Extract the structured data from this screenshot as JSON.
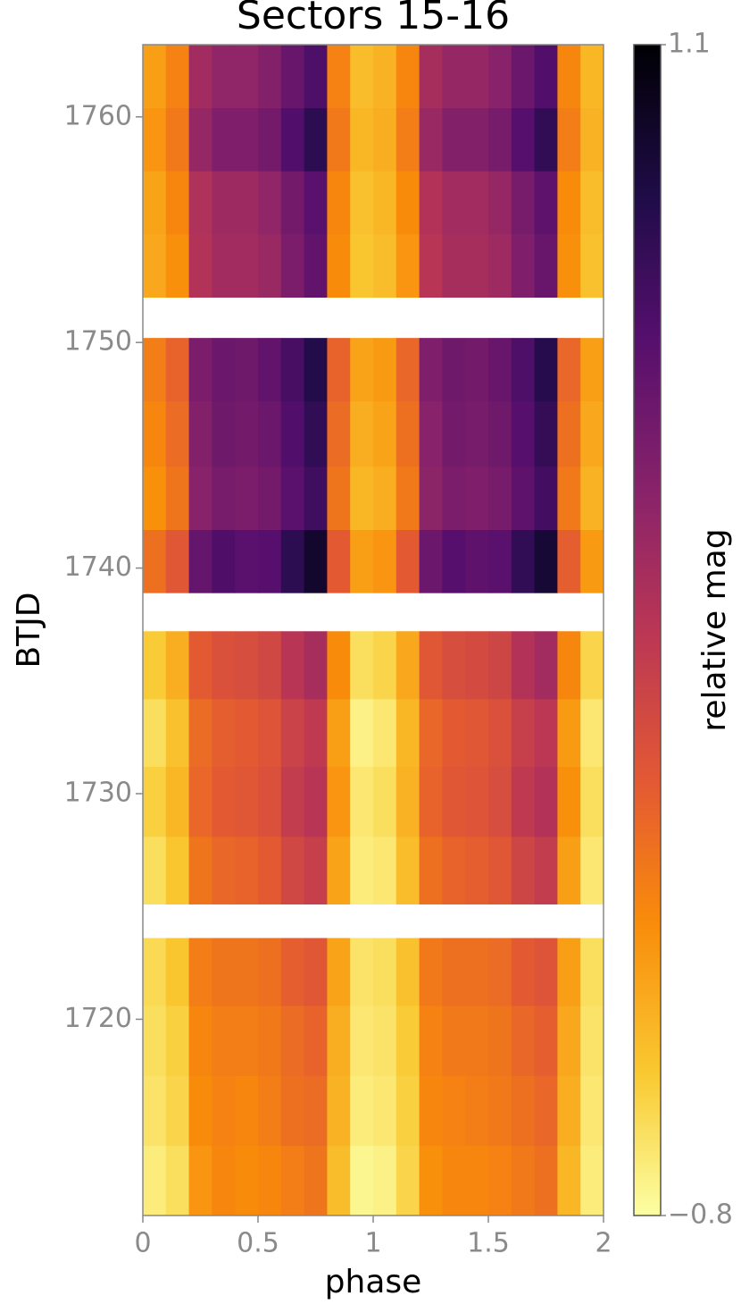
{
  "chart_data": {
    "type": "heatmap",
    "title": "Sectors 15-16",
    "xlabel": "phase",
    "ylabel": "BTJD",
    "colorbar_label": "relative mag",
    "colormap": "inferno",
    "colormap_reversed": true,
    "xlim": [
      0,
      2
    ],
    "xticks": [
      0,
      0.5,
      1,
      1.5,
      2
    ],
    "ylim": [
      1711.3,
      1763.2
    ],
    "yticks": [
      1720,
      1730,
      1740,
      1750,
      1760
    ],
    "zlim": [
      -0.8,
      1.1
    ],
    "zticks": [
      {
        "value": -0.8,
        "label": "−0.8"
      },
      1.1
    ],
    "x_bins": [
      0,
      0.1,
      0.2,
      0.3,
      0.4,
      0.5,
      0.6,
      0.7,
      0.8,
      0.9,
      1,
      1.1,
      1.2,
      1.3,
      1.4,
      1.5,
      1.6,
      1.7,
      1.8,
      1.9,
      2
    ],
    "rows": [
      {
        "y": [
          1711.3,
          1714.4
        ],
        "values": [
          -0.72,
          -0.66,
          -0.36,
          -0.3,
          -0.32,
          -0.3,
          -0.26,
          -0.22,
          -0.52,
          -0.76,
          -0.74,
          -0.62,
          -0.34,
          -0.3,
          -0.3,
          -0.28,
          -0.24,
          -0.2,
          -0.5,
          -0.72
        ]
      },
      {
        "y": [
          1714.4,
          1717.5
        ],
        "values": [
          -0.68,
          -0.62,
          -0.32,
          -0.28,
          -0.3,
          -0.26,
          -0.2,
          -0.18,
          -0.48,
          -0.72,
          -0.7,
          -0.6,
          -0.3,
          -0.28,
          -0.26,
          -0.24,
          -0.2,
          -0.16,
          -0.46,
          -0.7
        ]
      },
      {
        "y": [
          1717.5,
          1720.6
        ],
        "values": [
          -0.66,
          -0.6,
          -0.3,
          -0.26,
          -0.26,
          -0.24,
          -0.18,
          -0.14,
          -0.46,
          -0.7,
          -0.68,
          -0.58,
          -0.28,
          -0.24,
          -0.24,
          -0.22,
          -0.16,
          -0.12,
          -0.44,
          -0.68
        ]
      },
      {
        "y": [
          1720.6,
          1723.6
        ],
        "values": [
          -0.64,
          -0.56,
          -0.26,
          -0.22,
          -0.22,
          -0.2,
          -0.12,
          -0.08,
          -0.42,
          -0.68,
          -0.66,
          -0.54,
          -0.24,
          -0.2,
          -0.2,
          -0.18,
          -0.1,
          -0.06,
          -0.4,
          -0.66
        ]
      },
      {
        "y": [
          1725.1,
          1728.1
        ],
        "values": [
          -0.66,
          -0.56,
          -0.22,
          -0.16,
          -0.14,
          -0.1,
          0.02,
          0.08,
          -0.42,
          -0.72,
          -0.7,
          -0.52,
          -0.2,
          -0.14,
          -0.12,
          -0.08,
          0.04,
          0.1,
          -0.4,
          -0.7
        ]
      },
      {
        "y": [
          1728.1,
          1731.2
        ],
        "values": [
          -0.6,
          -0.5,
          -0.16,
          -0.1,
          -0.08,
          -0.04,
          0.1,
          0.16,
          -0.36,
          -0.7,
          -0.66,
          -0.48,
          -0.14,
          -0.08,
          -0.06,
          -0.02,
          0.12,
          0.18,
          -0.34,
          -0.66
        ]
      },
      {
        "y": [
          1731.2,
          1734.2
        ],
        "values": [
          -0.66,
          -0.54,
          -0.18,
          -0.12,
          -0.1,
          -0.06,
          0.06,
          0.12,
          -0.4,
          -0.74,
          -0.7,
          -0.5,
          -0.16,
          -0.1,
          -0.08,
          -0.04,
          0.08,
          0.14,
          -0.38,
          -0.7
        ]
      },
      {
        "y": [
          1734.2,
          1737.2
        ],
        "values": [
          -0.58,
          -0.46,
          -0.1,
          -0.04,
          -0.02,
          0.02,
          0.16,
          0.24,
          -0.32,
          -0.66,
          -0.62,
          -0.44,
          -0.08,
          -0.02,
          0,
          0.04,
          0.18,
          0.26,
          -0.3,
          -0.62
        ]
      },
      {
        "y": [
          1738.9,
          1741.7
        ],
        "values": [
          -0.2,
          -0.08,
          0.55,
          0.65,
          0.6,
          0.62,
          0.8,
          0.95,
          -0.1,
          -0.4,
          -0.36,
          -0.1,
          0.52,
          0.62,
          0.58,
          0.6,
          0.78,
          0.92,
          -0.12,
          -0.38
        ]
      },
      {
        "y": [
          1741.7,
          1744.5
        ],
        "values": [
          -0.34,
          -0.22,
          0.38,
          0.46,
          0.44,
          0.48,
          0.6,
          0.72,
          -0.22,
          -0.5,
          -0.46,
          -0.24,
          0.36,
          0.44,
          0.42,
          0.46,
          0.58,
          0.7,
          -0.24,
          -0.48
        ]
      },
      {
        "y": [
          1744.5,
          1747.4
        ],
        "values": [
          -0.3,
          -0.18,
          0.4,
          0.5,
          0.48,
          0.52,
          0.64,
          0.78,
          -0.18,
          -0.46,
          -0.42,
          -0.2,
          0.38,
          0.48,
          0.46,
          0.5,
          0.62,
          0.76,
          -0.2,
          -0.44
        ]
      },
      {
        "y": [
          1747.4,
          1750.2
        ],
        "values": [
          -0.26,
          -0.14,
          0.44,
          0.52,
          0.5,
          0.56,
          0.68,
          0.84,
          -0.14,
          -0.42,
          -0.38,
          -0.16,
          0.42,
          0.5,
          0.48,
          0.54,
          0.66,
          0.82,
          -0.16,
          -0.4
        ]
      },
      {
        "y": [
          1752.0,
          1754.8
        ],
        "values": [
          -0.44,
          -0.34,
          0.18,
          0.26,
          0.26,
          0.3,
          0.44,
          0.56,
          -0.32,
          -0.56,
          -0.52,
          -0.36,
          0.16,
          0.24,
          0.24,
          0.28,
          0.42,
          0.54,
          -0.34,
          -0.54
        ]
      },
      {
        "y": [
          1754.8,
          1757.6
        ],
        "values": [
          -0.42,
          -0.3,
          0.2,
          0.28,
          0.28,
          0.34,
          0.48,
          0.6,
          -0.3,
          -0.54,
          -0.5,
          -0.32,
          0.18,
          0.26,
          0.26,
          0.32,
          0.46,
          0.58,
          -0.32,
          -0.52
        ]
      },
      {
        "y": [
          1757.6,
          1760.4
        ],
        "values": [
          -0.36,
          -0.24,
          0.32,
          0.42,
          0.42,
          0.48,
          0.64,
          0.8,
          -0.24,
          -0.5,
          -0.46,
          -0.26,
          0.3,
          0.4,
          0.4,
          0.46,
          0.62,
          0.78,
          -0.26,
          -0.48
        ]
      },
      {
        "y": [
          1760.4,
          1763.2
        ],
        "values": [
          -0.4,
          -0.28,
          0.26,
          0.34,
          0.34,
          0.4,
          0.54,
          0.66,
          -0.28,
          -0.52,
          -0.48,
          -0.3,
          0.24,
          0.32,
          0.32,
          0.38,
          0.52,
          0.64,
          -0.3,
          -0.5
        ]
      }
    ]
  }
}
